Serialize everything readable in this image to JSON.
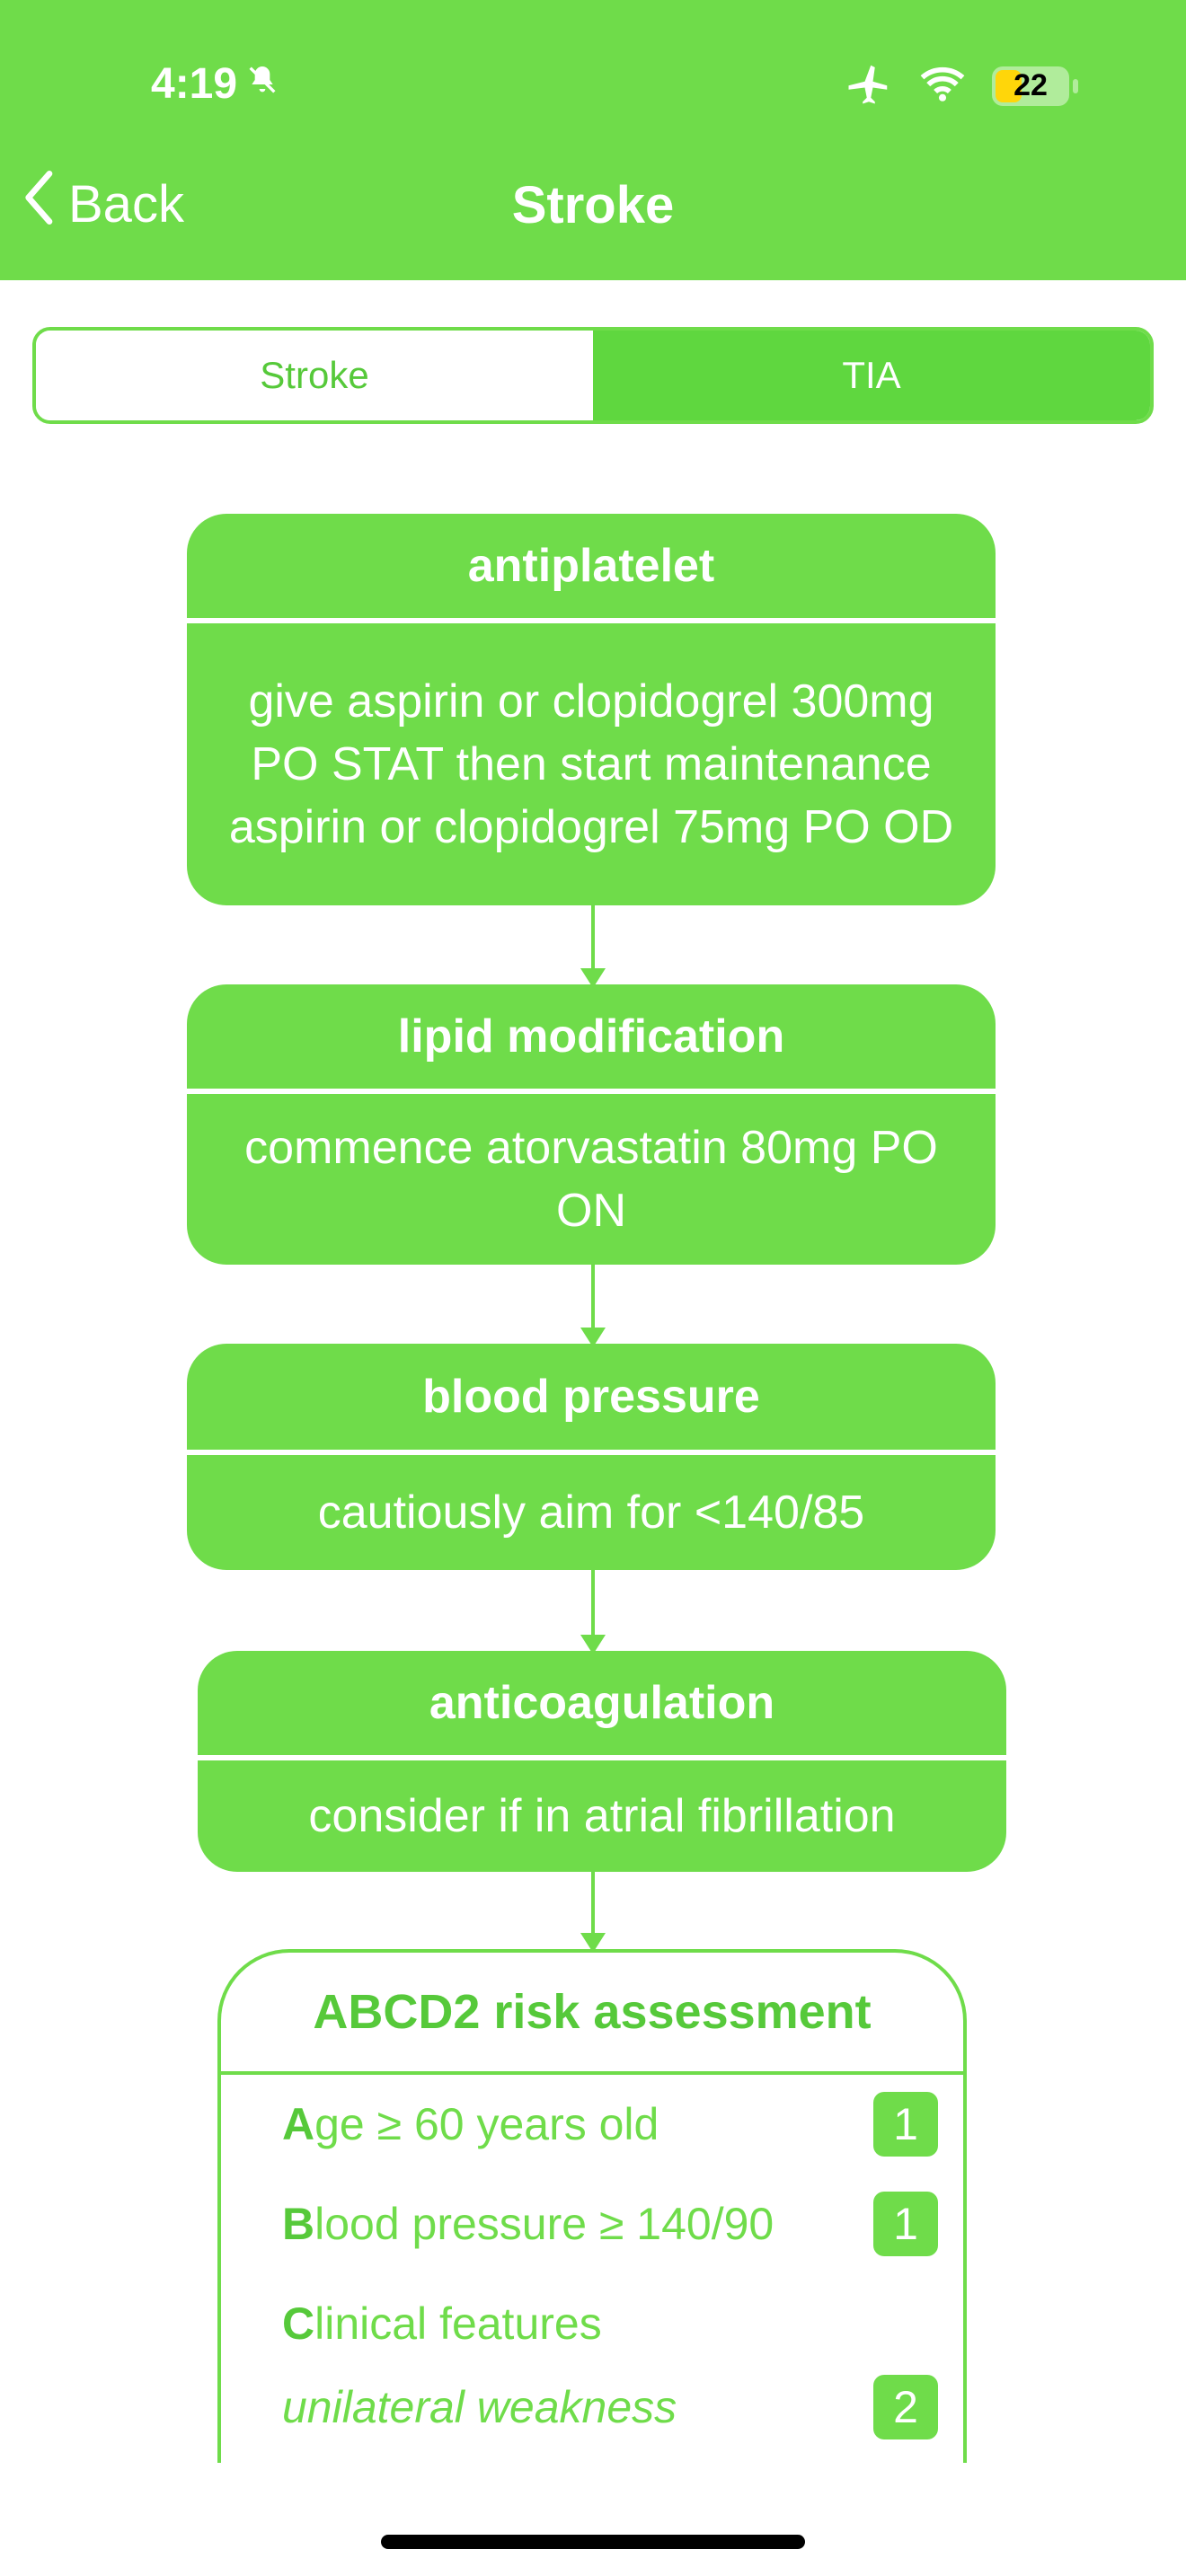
{
  "status": {
    "time": "4:19",
    "battery_level": "22",
    "icons": [
      "bell-off-icon",
      "airplane-icon",
      "wifi-icon",
      "battery-icon"
    ]
  },
  "nav": {
    "back_label": "Back",
    "title": "Stroke"
  },
  "segments": {
    "left": "Stroke",
    "right": "TIA",
    "selected": "TIA"
  },
  "cards": [
    {
      "title": "antiplatelet",
      "body": "give aspirin or clopidogrel 300mg PO STAT then start maintenance aspirin or clopidogrel 75mg PO OD"
    },
    {
      "title": "lipid modification",
      "body": "commence atorvastatin 80mg PO ON"
    },
    {
      "title": "blood pressure",
      "body": "cautiously aim for <140/85"
    },
    {
      "title": "anticoagulation",
      "body": "consider if in atrial fibrillation"
    }
  ],
  "risk": {
    "title": "ABCD2 risk assessment",
    "rows": [
      {
        "lead": "A",
        "text": "ge ≥ 60 years old",
        "score": "1"
      },
      {
        "lead": "B",
        "text": "lood pressure ≥ 140/90",
        "score": "1"
      },
      {
        "lead": "C",
        "text": "linical features",
        "score": ""
      },
      {
        "lead": "",
        "text": "unilateral weakness",
        "score": "2"
      }
    ]
  },
  "colors": {
    "accent": "#6fdc4a",
    "segment_selected": "#5fd73f"
  }
}
